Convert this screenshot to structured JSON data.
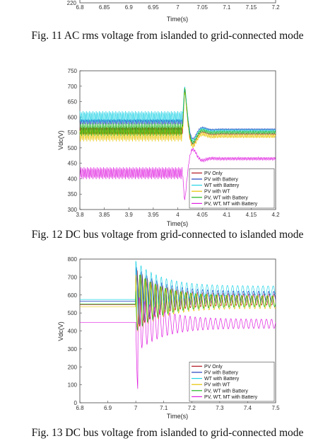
{
  "captions": {
    "fig11": "Fig. 11 AC rms voltage from islanded to grid-connected mode",
    "fig12": "Fig. 12 DC bus voltage from grid-connected to islanded mode",
    "fig13": "Fig. 13 DC bus voltage from islanded to grid-connected mode"
  },
  "series_styles": [
    {
      "name": "PV Only",
      "color": "#b0171f"
    },
    {
      "name": "PV with Battery",
      "color": "#1f3fbf"
    },
    {
      "name": "WT with Battery",
      "color": "#22d3e6"
    },
    {
      "name": "PV with WT",
      "color": "#e8c400"
    },
    {
      "name": "PV, WT with Battery",
      "color": "#1fb51f"
    },
    {
      "name": "PV, WT, MT with Battery",
      "color": "#e020e0"
    }
  ],
  "chart_data": [
    {
      "id": "fig11-partial",
      "type": "line",
      "xlabel": "Time(s)",
      "xlim": [
        6.8,
        7.2
      ],
      "x_ticks": [
        "6.8",
        "6.85",
        "6.9",
        "6.95",
        "7",
        "7.05",
        "7.1",
        "7.15",
        "7.2"
      ],
      "y_ticks_visible": [
        "220"
      ]
    },
    {
      "id": "fig12",
      "type": "line",
      "xlabel": "Time(s)",
      "ylabel": "Vdc(V)",
      "xlim": [
        3.8,
        4.2
      ],
      "ylim": [
        300,
        750
      ],
      "x_ticks": [
        "3.8",
        "3.85",
        "3.9",
        "3.95",
        "4",
        "4.05",
        "4.1",
        "4.15",
        "4.2"
      ],
      "y_ticks": [
        "300",
        "350",
        "400",
        "450",
        "500",
        "550",
        "600",
        "650",
        "700",
        "750"
      ],
      "event_time": 4.01,
      "legend_position": "lower-right",
      "series": [
        {
          "name": "PV Only",
          "before": 555,
          "ripple": 12,
          "after": 545,
          "peak": 695
        },
        {
          "name": "PV with Battery",
          "before": 583,
          "ripple": 10,
          "after": 560,
          "peak": 700
        },
        {
          "name": "WT with Battery",
          "before": 600,
          "ripple": 20,
          "after": 555,
          "peak": 705
        },
        {
          "name": "PV with WT",
          "before": 545,
          "ripple": 25,
          "after": 538,
          "peak": 690
        },
        {
          "name": "PV, WT with Battery",
          "before": 560,
          "ripple": 22,
          "after": 550,
          "peak": 700
        },
        {
          "name": "PV, WT, MT with Battery",
          "before": 418,
          "ripple": 20,
          "after": 465,
          "dip": 325
        }
      ]
    },
    {
      "id": "fig13",
      "type": "line",
      "xlabel": "Time(s)",
      "ylabel": "Vdc(V)",
      "xlim": [
        6.8,
        7.5
      ],
      "ylim": [
        0,
        800
      ],
      "x_ticks": [
        "6.8",
        "6.9",
        "7",
        "7.1",
        "7.2",
        "7.3",
        "7.4",
        "7.5"
      ],
      "y_ticks": [
        "0",
        "100",
        "200",
        "300",
        "400",
        "500",
        "600",
        "700",
        "800"
      ],
      "event_time": 7.0,
      "legend_position": "lower-right",
      "series": [
        {
          "name": "PV Only",
          "before": 545,
          "after": 575,
          "ripple": 30
        },
        {
          "name": "PV with Battery",
          "before": 565,
          "after": 590,
          "ripple": 30
        },
        {
          "name": "WT with Battery",
          "before": 575,
          "after": 625,
          "ripple": 25
        },
        {
          "name": "PV with WT",
          "before": 535,
          "after": 560,
          "ripple": 35
        },
        {
          "name": "PV, WT with Battery",
          "before": 550,
          "after": 565,
          "ripple": 30
        },
        {
          "name": "PV, WT, MT with Battery",
          "before": 448,
          "after": 440,
          "ripple": 25,
          "dip": 70
        }
      ]
    }
  ]
}
